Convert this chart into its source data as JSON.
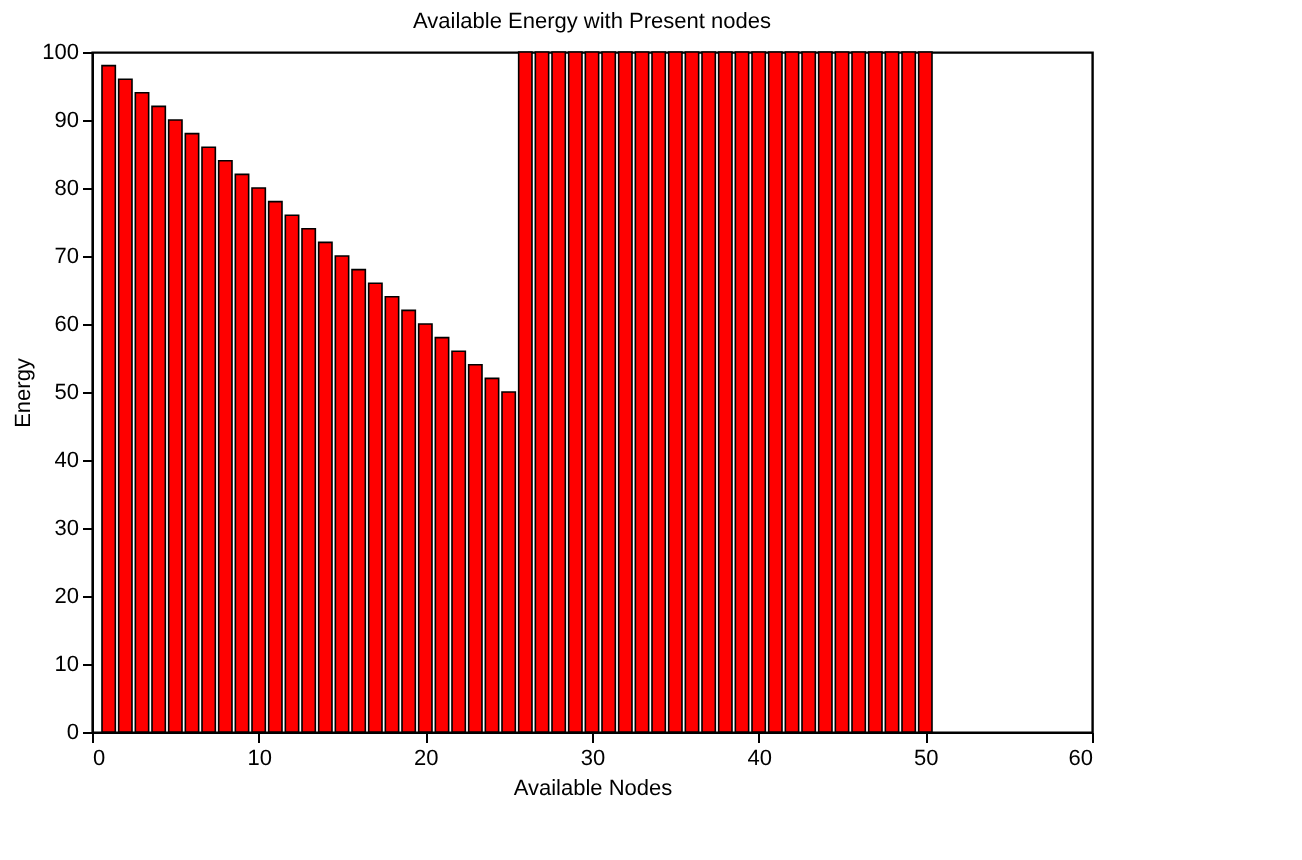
{
  "chart_data": {
    "type": "bar",
    "title": "Available Energy  with Present nodes",
    "xlabel": "Available Nodes",
    "ylabel": "Energy",
    "x": [
      1,
      2,
      3,
      4,
      5,
      6,
      7,
      8,
      9,
      10,
      11,
      12,
      13,
      14,
      15,
      16,
      17,
      18,
      19,
      20,
      21,
      22,
      23,
      24,
      25,
      26,
      27,
      28,
      29,
      30,
      31,
      32,
      33,
      34,
      35,
      36,
      37,
      38,
      39,
      40,
      41,
      42,
      43,
      44,
      45,
      46,
      47,
      48,
      49,
      50
    ],
    "values": [
      98,
      96,
      94,
      92,
      90,
      88,
      86,
      84,
      82,
      80,
      78,
      76,
      74,
      72,
      70,
      68,
      66,
      64,
      62,
      60,
      58,
      56,
      54,
      52,
      50,
      100,
      100,
      100,
      100,
      100,
      100,
      100,
      100,
      100,
      100,
      100,
      100,
      100,
      100,
      100,
      100,
      100,
      100,
      100,
      100,
      100,
      100,
      100,
      100,
      100
    ],
    "color": "#ff0000",
    "xlim": [
      0,
      60
    ],
    "xticks": [
      0,
      10,
      20,
      30,
      40,
      50,
      60
    ],
    "ylim": [
      0,
      100
    ],
    "yticks": [
      0,
      10,
      20,
      30,
      40,
      50,
      60,
      70,
      80,
      90,
      100
    ],
    "grid": false
  }
}
